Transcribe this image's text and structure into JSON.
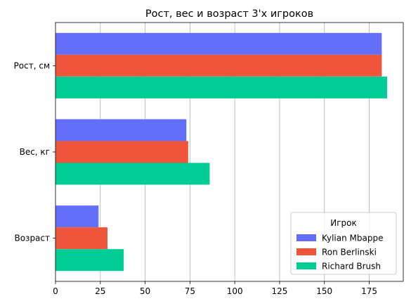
{
  "chart_data": {
    "type": "bar",
    "orientation": "horizontal",
    "title": "Рост, вес и возраст 3'х игроков",
    "categories": [
      "Рост, см",
      "Вес, кг",
      "Возраст"
    ],
    "series": [
      {
        "name": "Kylian Mbappe",
        "values": [
          182,
          73,
          24
        ],
        "color": "#636efa"
      },
      {
        "name": "Ron Berlinski",
        "values": [
          182,
          74,
          29
        ],
        "color": "#ef553b"
      },
      {
        "name": "Richard Brush",
        "values": [
          185,
          86,
          38
        ],
        "color": "#00cc96"
      }
    ],
    "xlim": [
      0,
      194
    ],
    "xticks": [
      0,
      25,
      50,
      75,
      100,
      125,
      150,
      175
    ],
    "grid": "x",
    "legend": {
      "title": "Игрок",
      "placement": "bottom-right"
    }
  }
}
